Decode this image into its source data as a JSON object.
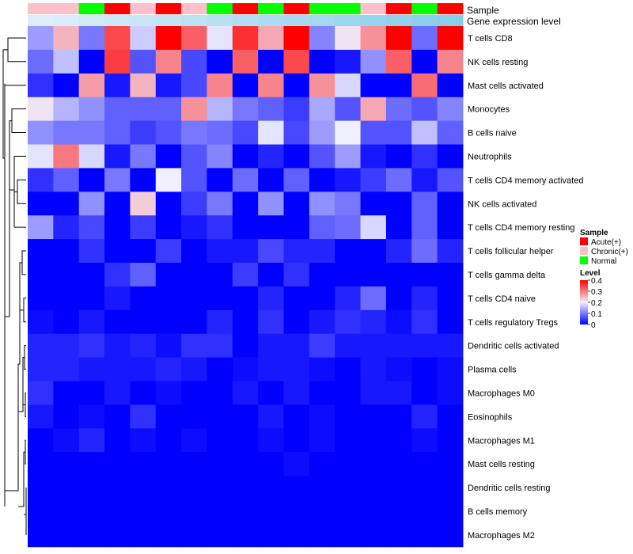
{
  "chart_data": {
    "type": "heatmap",
    "title": "",
    "annotation_rows": [
      "Sample",
      "Gene expression level"
    ],
    "columns": [
      {
        "sample": "Chronic(+)"
      },
      {
        "sample": "Chronic(+)"
      },
      {
        "sample": "Normal"
      },
      {
        "sample": "Acute(+)"
      },
      {
        "sample": "Chronic(+)"
      },
      {
        "sample": "Acute(+)"
      },
      {
        "sample": "Chronic(+)"
      },
      {
        "sample": "Normal"
      },
      {
        "sample": "Acute(+)"
      },
      {
        "sample": "Normal"
      },
      {
        "sample": "Acute(+)"
      },
      {
        "sample": "Normal"
      },
      {
        "sample": "Normal"
      },
      {
        "sample": "Chronic(+)"
      },
      {
        "sample": "Acute(+)"
      },
      {
        "sample": "Normal"
      },
      {
        "sample": "Acute(+)"
      }
    ],
    "rows": [
      "T cells CD8",
      "NK cells resting",
      "Mast cells activated",
      "Monocytes",
      "B cells naive",
      "Neutrophils",
      "T cells CD4 memory activated",
      "NK cells activated",
      "T cells CD4 memory resting",
      "T cells follicular helper",
      "T cells gamma delta",
      "T cells CD4 naive",
      "T cells regulatory  Tregs",
      "Dendritic cells activated",
      "Plasma cells",
      "Macrophages M0",
      "Eosinophils",
      "Macrophages M1",
      "Mast cells resting",
      "Dendritic cells resting",
      "B cells memory",
      "Macrophages M2"
    ],
    "values": [
      [
        0.13,
        0.25,
        0.1,
        0.34,
        0.17,
        0.4,
        0.32,
        0.19,
        0.36,
        0.26,
        0.4,
        0.11,
        0.21,
        0.28,
        0.4,
        0.09,
        0.4
      ],
      [
        0.09,
        0.16,
        0.0,
        0.35,
        0.07,
        0.29,
        0.06,
        0.0,
        0.32,
        0.0,
        0.34,
        0.0,
        0.02,
        0.12,
        0.32,
        0.0,
        0.29
      ],
      [
        0.04,
        0.0,
        0.27,
        0.02,
        0.25,
        0.02,
        0.06,
        0.29,
        0.0,
        0.29,
        0.0,
        0.28,
        0.18,
        0.0,
        0.0,
        0.31,
        0.0
      ],
      [
        0.21,
        0.15,
        0.12,
        0.08,
        0.08,
        0.08,
        0.28,
        0.15,
        0.1,
        0.08,
        0.05,
        0.14,
        0.07,
        0.26,
        0.09,
        0.07,
        0.11
      ],
      [
        0.12,
        0.1,
        0.1,
        0.08,
        0.05,
        0.07,
        0.1,
        0.09,
        0.06,
        0.19,
        0.06,
        0.13,
        0.2,
        0.07,
        0.07,
        0.16,
        0.08
      ],
      [
        0.19,
        0.3,
        0.18,
        0.02,
        0.1,
        0.0,
        0.07,
        0.11,
        0.0,
        0.03,
        0.0,
        0.07,
        0.13,
        0.02,
        0.0,
        0.04,
        0.0
      ],
      [
        0.04,
        0.08,
        0.0,
        0.1,
        0.0,
        0.2,
        0.07,
        0.0,
        0.09,
        0.0,
        0.08,
        0.0,
        0.02,
        0.05,
        0.09,
        0.02,
        0.07
      ],
      [
        0.0,
        0.0,
        0.12,
        0.0,
        0.23,
        0.0,
        0.05,
        0.1,
        0.0,
        0.12,
        0.0,
        0.12,
        0.1,
        0.0,
        0.0,
        0.08,
        0.0
      ],
      [
        0.13,
        0.03,
        0.06,
        0.0,
        0.05,
        0.0,
        0.02,
        0.04,
        0.0,
        0.0,
        0.0,
        0.08,
        0.09,
        0.18,
        0.0,
        0.08,
        0.0
      ],
      [
        0.0,
        0.0,
        0.04,
        0.0,
        0.0,
        0.05,
        0.0,
        0.02,
        0.02,
        0.06,
        0.03,
        0.03,
        0.0,
        0.0,
        0.03,
        0.09,
        0.03
      ],
      [
        0.0,
        0.0,
        0.0,
        0.04,
        0.08,
        0.0,
        0.0,
        0.0,
        0.05,
        0.0,
        0.04,
        0.0,
        0.0,
        0.0,
        0.0,
        0.0,
        0.0
      ],
      [
        0.0,
        0.0,
        0.0,
        0.02,
        0.0,
        0.0,
        0.0,
        0.0,
        0.0,
        0.03,
        0.0,
        0.0,
        0.03,
        0.09,
        0.0,
        0.03,
        0.0
      ],
      [
        0.01,
        0.0,
        0.02,
        0.0,
        0.0,
        0.0,
        0.0,
        0.03,
        0.0,
        0.04,
        0.0,
        0.02,
        0.04,
        0.03,
        0.01,
        0.04,
        0.0
      ],
      [
        0.03,
        0.03,
        0.04,
        0.02,
        0.03,
        0.01,
        0.04,
        0.04,
        0.0,
        0.02,
        0.02,
        0.05,
        0.02,
        0.02,
        0.02,
        0.02,
        0.02
      ],
      [
        0.03,
        0.03,
        0.02,
        0.02,
        0.02,
        0.03,
        0.02,
        0.0,
        0.01,
        0.02,
        0.02,
        0.01,
        0.0,
        0.02,
        0.01,
        0.0,
        0.01
      ],
      [
        0.04,
        0.0,
        0.0,
        0.02,
        0.0,
        0.01,
        0.0,
        0.0,
        0.02,
        0.0,
        0.02,
        0.0,
        0.0,
        0.02,
        0.02,
        0.0,
        0.01
      ],
      [
        0.02,
        0.0,
        0.01,
        0.0,
        0.04,
        0.0,
        0.0,
        0.0,
        0.0,
        0.02,
        0.0,
        0.01,
        0.0,
        0.0,
        0.0,
        0.03,
        0.0
      ],
      [
        0.0,
        0.01,
        0.03,
        0.0,
        0.01,
        0.0,
        0.01,
        0.0,
        0.0,
        0.01,
        0.0,
        0.01,
        0.0,
        0.0,
        0.0,
        0.01,
        0.0
      ],
      [
        0.0,
        0.0,
        0.0,
        0.0,
        0.0,
        0.0,
        0.0,
        0.0,
        0.0,
        0.0,
        0.01,
        0.0,
        0.0,
        0.0,
        0.0,
        0.0,
        0.0
      ],
      [
        0.0,
        0.0,
        0.0,
        0.0,
        0.0,
        0.0,
        0.0,
        0.0,
        0.0,
        0.0,
        0.0,
        0.0,
        0.0,
        0.0,
        0.0,
        0.0,
        0.0
      ],
      [
        0.0,
        0.0,
        0.0,
        0.0,
        0.0,
        0.0,
        0.0,
        0.0,
        0.0,
        0.0,
        0.0,
        0.0,
        0.0,
        0.0,
        0.0,
        0.0,
        0.0
      ],
      [
        0.0,
        0.0,
        0.0,
        0.0,
        0.0,
        0.0,
        0.0,
        0.0,
        0.0,
        0.0,
        0.0,
        0.0,
        0.0,
        0.0,
        0.0,
        0.0,
        0.0
      ]
    ],
    "color_scale": {
      "min": 0,
      "max": 0.4,
      "low": "#0000ff",
      "mid": "#f0f0ff",
      "high": "#ff0000"
    },
    "legend": {
      "sample_title": "Sample",
      "sample_entries": [
        {
          "label": "Acute(+)",
          "color": "#ff0000"
        },
        {
          "label": "Chronic(+)",
          "color": "#ffc0cb"
        },
        {
          "label": "Normal",
          "color": "#00ff00"
        }
      ],
      "level_title": "Level",
      "level_ticks": [
        {
          "label": "0.4",
          "value": 0.4
        },
        {
          "label": "0.3",
          "value": 0.3
        },
        {
          "label": "0.2",
          "value": 0.2
        },
        {
          "label": "0.1",
          "value": 0.1
        },
        {
          "label": "0",
          "value": 0
        }
      ],
      "position": "right"
    },
    "gene_expression_color": "#87ceeb",
    "gene_expression_color_light": "#ddeefa"
  }
}
